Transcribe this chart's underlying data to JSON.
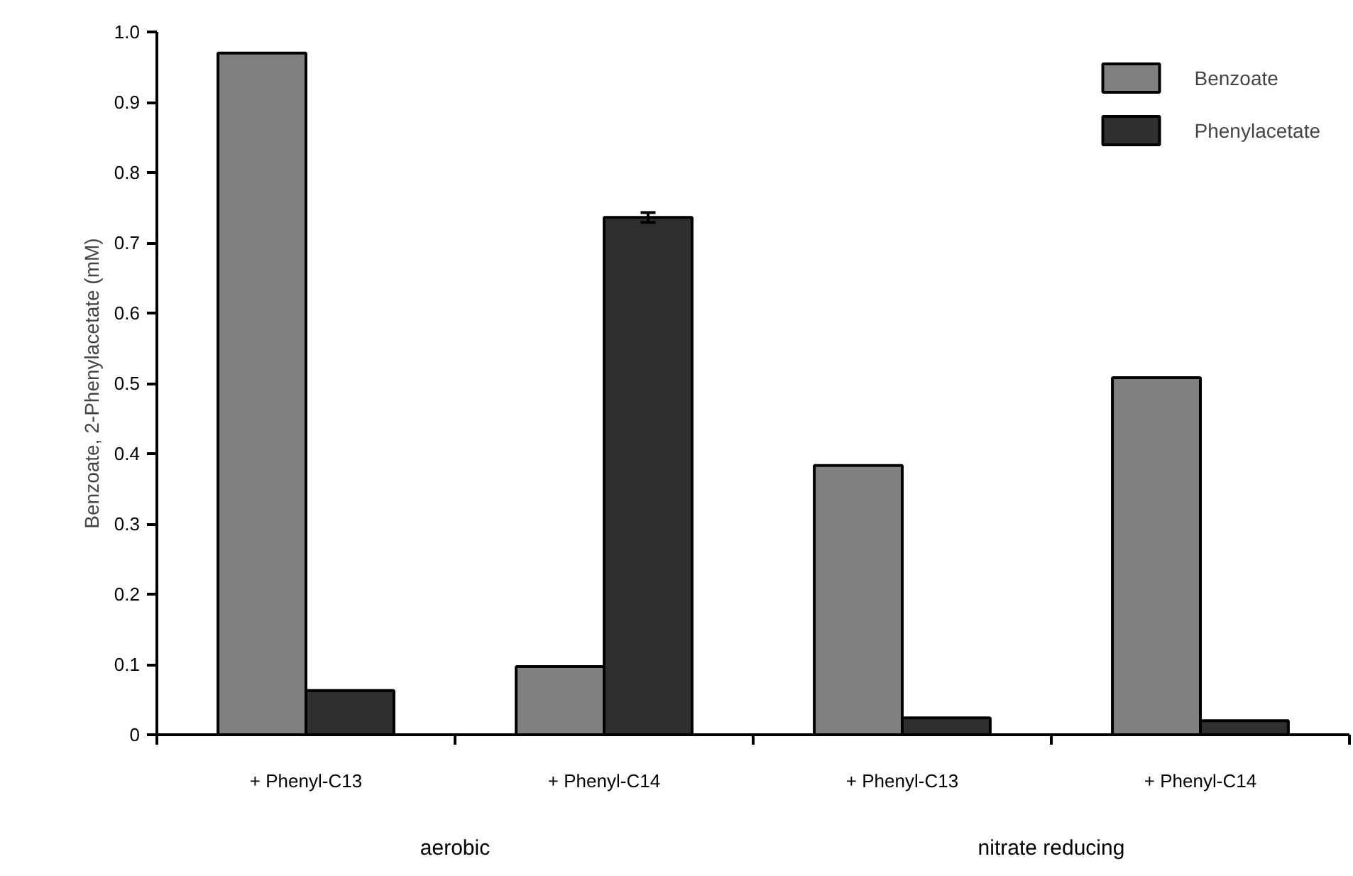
{
  "chart_data": {
    "type": "bar",
    "ylabel": "Benzoate, 2-Phenylacetate (mM)",
    "categories": [
      "+ Phenyl-C13",
      "+ Phenyl-C14",
      "+ Phenyl-C13",
      "+ Phenyl-C14"
    ],
    "series": [
      {
        "name": "Benzoate",
        "color": "#808080",
        "values": [
          0.97,
          0.097,
          0.383,
          0.508
        ]
      },
      {
        "name": "Phenylacetate",
        "color": "#2f2f2f",
        "values": [
          0.063,
          0.736,
          0.024,
          0.02
        ],
        "errors": [
          null,
          0.007,
          null,
          null
        ]
      }
    ],
    "annotations": [
      "aerobic",
      "nitrate reducing"
    ],
    "ylim": [
      0,
      1.0
    ],
    "yticks": [
      0,
      0.1,
      0.2,
      0.3,
      0.4,
      0.5,
      0.6,
      0.7,
      0.8,
      0.9,
      {
        "value": 1.0,
        "label": "1.0"
      }
    ],
    "grid": false,
    "legend": "top right"
  }
}
